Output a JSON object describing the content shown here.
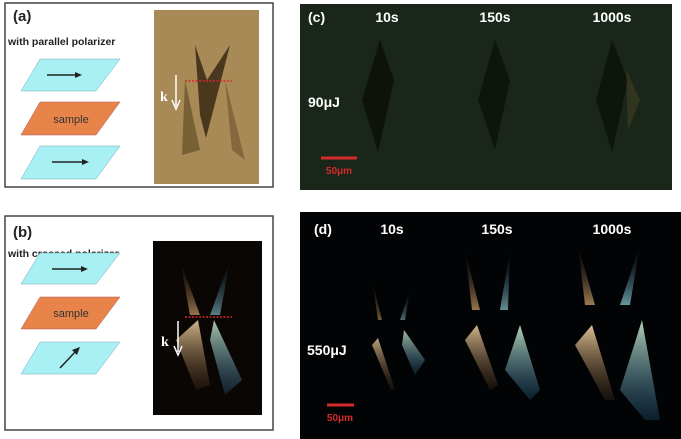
{
  "panel_a": {
    "label": "(a)",
    "title": "with parallel polarizer",
    "sample_label": "sample",
    "k_label": "k",
    "polarizer_bottom": "parallel"
  },
  "panel_b": {
    "label": "(b)",
    "title": "with crossed polarizer",
    "sample_label": "sample",
    "k_label": "k",
    "polarizer_bottom": "diagonal"
  },
  "panel_c": {
    "label": "(c)",
    "times": [
      "10s",
      "150s",
      "1000s"
    ],
    "energy": "90μJ",
    "scale_bar": "50μm"
  },
  "panel_d": {
    "label": "(d)",
    "times": [
      "10s",
      "150s",
      "1000s"
    ],
    "energy": "550μJ",
    "scale_bar": "50μm"
  },
  "colors": {
    "polarizer": "#a8f0f4",
    "sample": "#e8844a",
    "image_a_bg": "#a88a56",
    "panel_c_bg": "#1a2619",
    "panel_d_bg": "#020304",
    "scale_bar": "#d42a2a",
    "red_dotted_line": "#d42a2a"
  }
}
